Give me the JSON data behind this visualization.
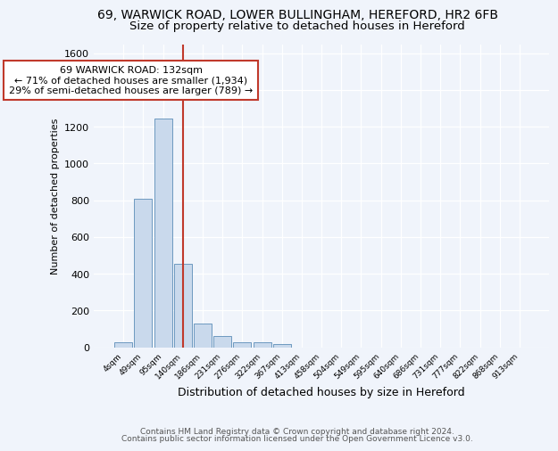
{
  "title1": "69, WARWICK ROAD, LOWER BULLINGHAM, HEREFORD, HR2 6FB",
  "title2": "Size of property relative to detached houses in Hereford",
  "xlabel": "Distribution of detached houses by size in Hereford",
  "ylabel": "Number of detached properties",
  "bar_labels": [
    "4sqm",
    "49sqm",
    "95sqm",
    "140sqm",
    "186sqm",
    "231sqm",
    "276sqm",
    "322sqm",
    "367sqm",
    "413sqm",
    "458sqm",
    "504sqm",
    "549sqm",
    "595sqm",
    "640sqm",
    "686sqm",
    "731sqm",
    "777sqm",
    "822sqm",
    "868sqm",
    "913sqm"
  ],
  "bar_heights": [
    25,
    810,
    1245,
    455,
    130,
    62,
    28,
    25,
    15,
    0,
    0,
    0,
    0,
    0,
    0,
    0,
    0,
    0,
    0,
    0,
    0
  ],
  "bar_color": "#c9d9ec",
  "bar_edge_color": "#5b8db8",
  "vline_x": 3.0,
  "vline_color": "#c0392b",
  "ylim": [
    0,
    1650
  ],
  "annotation_text": "69 WARWICK ROAD: 132sqm\n← 71% of detached houses are smaller (1,934)\n29% of semi-detached houses are larger (789) →",
  "annotation_box_color": "#ffffff",
  "annotation_box_edge": "#c0392b",
  "footer1": "Contains HM Land Registry data © Crown copyright and database right 2024.",
  "footer2": "Contains public sector information licensed under the Open Government Licence v3.0.",
  "bg_color": "#f0f4fb",
  "grid_color": "#ffffff",
  "title1_fontsize": 10,
  "title2_fontsize": 9.5
}
